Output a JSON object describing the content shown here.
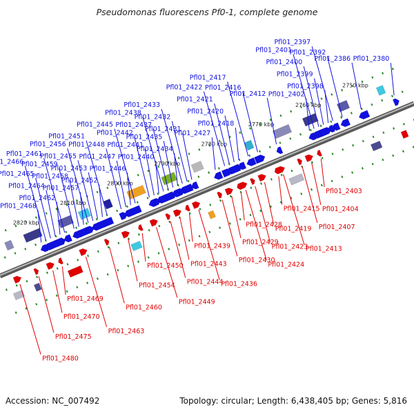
{
  "title": "Pseudomonas fluorescens Pf0-1, complete genome",
  "footer": {
    "accession": "Accession: NC_007492",
    "summary": "Topology: circular; Length: 6,438,405 bp; Genes: 5,816"
  },
  "colors": {
    "forward": "#1010e0",
    "reverse": "#e00000",
    "backbone": "#888888",
    "dots": "#2a8a2a"
  },
  "scale_ticks": [
    {
      "label": "2750 kbp",
      "pos": 2750
    },
    {
      "label": "2760 kbp",
      "pos": 2760
    },
    {
      "label": "2770 kbp",
      "pos": 2770
    },
    {
      "label": "2780 kbp",
      "pos": 2780
    },
    {
      "label": "2790 kbp",
      "pos": 2790
    },
    {
      "label": "2800 kbp",
      "pos": 2800
    },
    {
      "label": "2810 kbp",
      "pos": 2810
    },
    {
      "label": "2820 kbp",
      "pos": 2820
    }
  ],
  "forward_genes": [
    {
      "label": "Pfl01_2380",
      "pos": 2745
    },
    {
      "label": "Pfl01_2386",
      "pos": 2752
    },
    {
      "label": "Pfl01_2392",
      "pos": 2756
    },
    {
      "label": "Pfl01_2397",
      "pos": 2758
    },
    {
      "label": "Pfl01_2398",
      "pos": 2759
    },
    {
      "label": "Pfl01_2399",
      "pos": 2760
    },
    {
      "label": "Pfl01_2400",
      "pos": 2761
    },
    {
      "label": "Pfl01_2401",
      "pos": 2762
    },
    {
      "label": "Pfl01_2402",
      "pos": 2763
    },
    {
      "label": "Pfl01_2412",
      "pos": 2770
    },
    {
      "label": "Pfl01_2416",
      "pos": 2774
    },
    {
      "label": "Pfl01_2417",
      "pos": 2776
    },
    {
      "label": "Pfl01_2418",
      "pos": 2778
    },
    {
      "label": "Pfl01_2420",
      "pos": 2779
    },
    {
      "label": "Pfl01_2421",
      "pos": 2780
    },
    {
      "label": "Pfl01_2422",
      "pos": 2781
    },
    {
      "label": "Pfl01_2427",
      "pos": 2783
    },
    {
      "label": "Pfl01_2431",
      "pos": 2788
    },
    {
      "label": "Pfl01_2432",
      "pos": 2789
    },
    {
      "label": "Pfl01_2433",
      "pos": 2790
    },
    {
      "label": "Pfl01_2434",
      "pos": 2791
    },
    {
      "label": "Pfl01_2435",
      "pos": 2792
    },
    {
      "label": "Pfl01_2437",
      "pos": 2793
    },
    {
      "label": "Pfl01_2438",
      "pos": 2794
    },
    {
      "label": "Pfl01_2440",
      "pos": 2795
    },
    {
      "label": "Pfl01_2441",
      "pos": 2796
    },
    {
      "label": "Pfl01_2442",
      "pos": 2797
    },
    {
      "label": "Pfl01_2445",
      "pos": 2800
    },
    {
      "label": "Pfl01_2446",
      "pos": 2801
    },
    {
      "label": "Pfl01_2447",
      "pos": 2802
    },
    {
      "label": "Pfl01_2448",
      "pos": 2803
    },
    {
      "label": "Pfl01_2451",
      "pos": 2806
    },
    {
      "label": "Pfl01_2452",
      "pos": 2807
    },
    {
      "label": "Pfl01_2453",
      "pos": 2808
    },
    {
      "label": "Pfl01_2455",
      "pos": 2809
    },
    {
      "label": "Pfl01_2456",
      "pos": 2810
    },
    {
      "label": "Pfl01_2457",
      "pos": 2811
    },
    {
      "label": "Pfl01_2458",
      "pos": 2812
    },
    {
      "label": "Pfl01_2459",
      "pos": 2813
    },
    {
      "label": "Pfl01_2461",
      "pos": 2815
    },
    {
      "label": "Pfl01_2462",
      "pos": 2816
    },
    {
      "label": "Pfl01_2464",
      "pos": 2817
    },
    {
      "label": "Pfl01_2465",
      "pos": 2818
    },
    {
      "label": "Pfl01_2466",
      "pos": 2819
    },
    {
      "label": "Pfl01_2468",
      "pos": 2820
    }
  ],
  "reverse_genes": [
    {
      "label": "Pfl01_2403",
      "pos": 2763
    },
    {
      "label": "Pfl01_2404",
      "pos": 2765
    },
    {
      "label": "Pfl01_2407",
      "pos": 2767
    },
    {
      "label": "Pfl01_2413",
      "pos": 2771
    },
    {
      "label": "Pfl01_2415",
      "pos": 2772
    },
    {
      "label": "Pfl01_2419",
      "pos": 2775
    },
    {
      "label": "Pfl01_2423",
      "pos": 2777
    },
    {
      "label": "Pfl01_2424",
      "pos": 2779
    },
    {
      "label": "Pfl01_2428",
      "pos": 2780
    },
    {
      "label": "Pfl01_2429",
      "pos": 2782
    },
    {
      "label": "Pfl01_2430",
      "pos": 2784
    },
    {
      "label": "Pfl01_2436",
      "pos": 2789
    },
    {
      "label": "Pfl01_2439",
      "pos": 2791
    },
    {
      "label": "Pfl01_2443",
      "pos": 2793
    },
    {
      "label": "Pfl01_2444",
      "pos": 2795
    },
    {
      "label": "Pfl01_2449",
      "pos": 2798
    },
    {
      "label": "Pfl01_2450",
      "pos": 2801
    },
    {
      "label": "Pfl01_2454",
      "pos": 2804
    },
    {
      "label": "Pfl01_2460",
      "pos": 2808
    },
    {
      "label": "Pfl01_2463",
      "pos": 2813
    },
    {
      "label": "Pfl01_2469",
      "pos": 2818
    },
    {
      "label": "Pfl01_2470",
      "pos": 2820
    },
    {
      "label": "Pfl01_2475",
      "pos": 2823
    },
    {
      "label": "Pfl01_2480",
      "pos": 2827
    }
  ]
}
